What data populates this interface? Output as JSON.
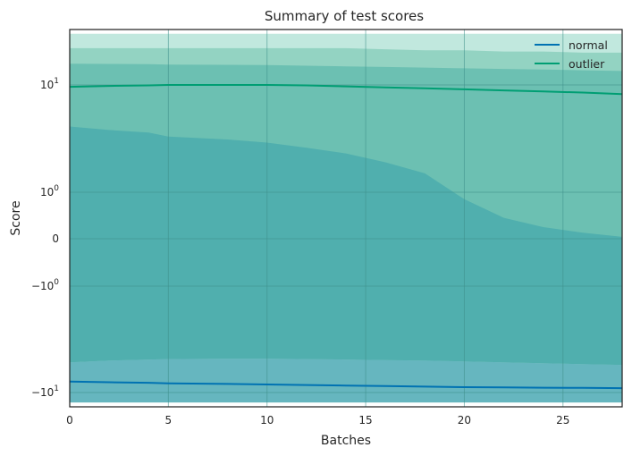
{
  "chart_data": {
    "type": "area",
    "title": "Summary of test scores",
    "xlabel": "Batches",
    "ylabel": "Score",
    "xlim": [
      0,
      28
    ],
    "x_ticks": [
      0,
      5,
      10,
      15,
      20,
      25
    ],
    "y_scale": "symlog",
    "y_ticks": [
      {
        "value": 10,
        "base": "10",
        "exp": "1"
      },
      {
        "value": 1,
        "base": "10",
        "exp": "0"
      },
      {
        "value": 0,
        "base": "0",
        "exp": ""
      },
      {
        "value": -1,
        "base": "−10",
        "exp": "0"
      },
      {
        "value": -10,
        "base": "−10",
        "exp": "1"
      }
    ],
    "grid": true,
    "legend": {
      "position": "top-right"
    },
    "x": [
      0,
      2,
      4,
      5,
      8,
      10,
      12,
      14,
      16,
      18,
      20,
      22,
      24,
      26,
      28
    ],
    "bands": [
      {
        "lower": -12.4,
        "upper": 30.0,
        "color": "#c1e8de"
      },
      {
        "lower": -11.8,
        "upper": [
          22.0,
          22.0,
          22.0,
          22.0,
          22.0,
          22.0,
          22.0,
          22.0,
          21.5,
          21.0,
          21.0,
          20.5,
          20.5,
          20.0,
          20.0
        ],
        "color": "#93d3c2"
      },
      {
        "lower": [
          -5.2,
          -5.0,
          -4.9,
          -4.85,
          -4.8,
          -4.8,
          -4.85,
          -4.9,
          -4.95,
          -5.0,
          -5.1,
          -5.2,
          -5.3,
          -5.4,
          -5.5
        ],
        "upper": [
          15.8,
          15.7,
          15.6,
          15.5,
          15.4,
          15.3,
          15.1,
          14.9,
          14.7,
          14.5,
          14.3,
          14.1,
          13.9,
          13.7,
          13.5
        ],
        "color": "#6cc0b2"
      },
      {
        "lower": [
          -5.2,
          -5.0,
          -4.9,
          -4.85,
          -4.8,
          -4.8,
          -4.85,
          -4.9,
          -4.95,
          -5.0,
          -5.1,
          -5.2,
          -5.3,
          -5.4,
          -5.5
        ],
        "upper": [
          4.1,
          3.8,
          3.6,
          3.3,
          3.1,
          2.9,
          2.6,
          2.3,
          1.9,
          1.5,
          0.85,
          0.45,
          0.25,
          0.13,
          0.04
        ],
        "color": "#50afae"
      },
      {
        "lower": [
          -12.4,
          -12.4,
          -12.4,
          -12.4,
          -12.4,
          -12.4,
          -12.4,
          -12.4,
          -12.4,
          -12.4,
          -12.4,
          -12.4,
          -12.4,
          -12.4,
          -12.4
        ],
        "upper": [
          -5.2,
          -5.0,
          -4.9,
          -4.85,
          -4.8,
          -4.8,
          -4.85,
          -4.9,
          -4.95,
          -5.0,
          -5.1,
          -5.2,
          -5.3,
          -5.4,
          -5.5
        ],
        "color": "#66b6bf"
      }
    ],
    "series": [
      {
        "name": "normal",
        "color": "#0072b2",
        "values": [
          -7.9,
          -8.0,
          -8.1,
          -8.2,
          -8.3,
          -8.4,
          -8.5,
          -8.6,
          -8.7,
          -8.8,
          -8.9,
          -8.95,
          -9.0,
          -9.05,
          -9.1
        ]
      },
      {
        "name": "outlier",
        "color": "#009e73",
        "values": [
          9.6,
          9.8,
          9.9,
          10.0,
          10.0,
          10.0,
          9.9,
          9.7,
          9.5,
          9.3,
          9.1,
          8.9,
          8.7,
          8.5,
          8.2
        ]
      }
    ]
  }
}
